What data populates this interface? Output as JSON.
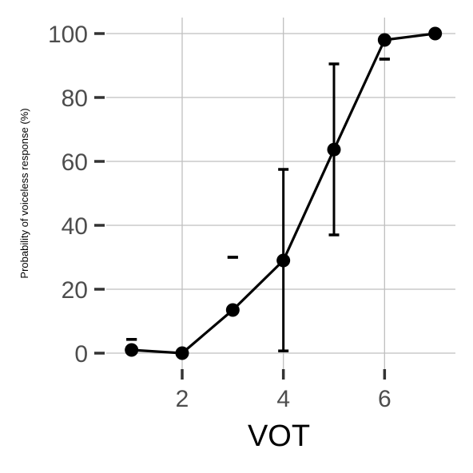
{
  "chart_data": {
    "type": "line",
    "title": "",
    "xlabel": "VOT",
    "ylabel": "Probability of voiceless response (%)",
    "xlim": [
      0.5,
      7.4
    ],
    "ylim": [
      -7,
      105
    ],
    "x_ticks": [
      {
        "value": 2,
        "label": "2"
      },
      {
        "value": 4,
        "label": "4"
      },
      {
        "value": 6,
        "label": "6"
      }
    ],
    "y_ticks": [
      {
        "value": 0,
        "label": "0"
      },
      {
        "value": 20,
        "label": "20"
      },
      {
        "value": 40,
        "label": "40"
      },
      {
        "value": 60,
        "label": "60"
      },
      {
        "value": 80,
        "label": "80"
      },
      {
        "value": 100,
        "label": "100"
      }
    ],
    "grid": true,
    "legend": "none",
    "series": [
      {
        "points": [
          {
            "x": 1,
            "y": 1.0,
            "ymin": 4.3,
            "ymax": 4.3
          },
          {
            "x": 2,
            "y": 0.0,
            "ymin": 0.0,
            "ymax": 0.0
          },
          {
            "x": 3,
            "y": 13.5,
            "ymin": 30.0,
            "ymax": 30.0
          },
          {
            "x": 4,
            "y": 29.0,
            "ymin": 0.7,
            "ymax": 57.5
          },
          {
            "x": 5,
            "y": 63.7,
            "ymin": 37.0,
            "ymax": 90.5
          },
          {
            "x": 6,
            "y": 98.0,
            "ymin": 92.0,
            "ymax": 92.0
          },
          {
            "x": 7,
            "y": 100.0,
            "ymin": 100.0,
            "ymax": 100.0
          }
        ]
      }
    ]
  },
  "colors": {
    "line": "#000000",
    "point": "#000000",
    "errorbar": "#000000",
    "grid": "#bfbfbf",
    "tick_mark": "#333333",
    "tick_label": "#4d4d4d",
    "axis_title": "#000000"
  }
}
